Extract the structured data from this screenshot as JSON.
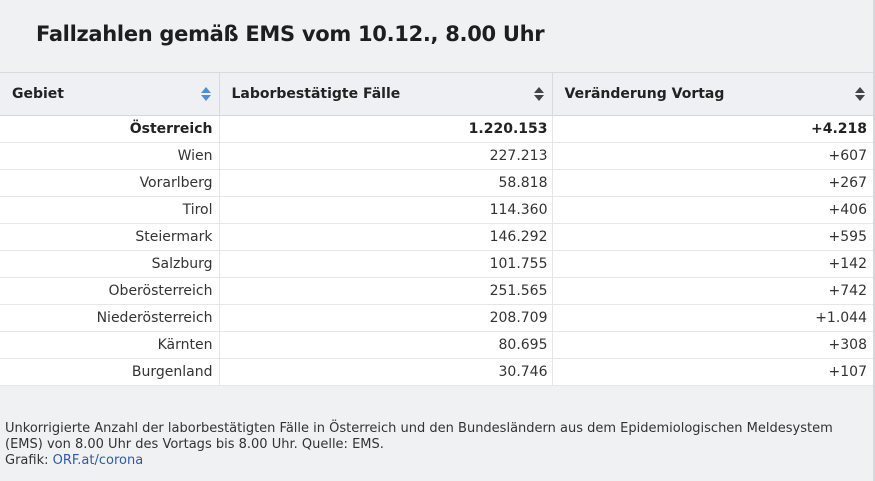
{
  "title": "Fallzahlen gemäß EMS vom 10.12., 8.00 Uhr",
  "columns": [
    {
      "label": "Gebiet",
      "sort_color": "#4a90d9"
    },
    {
      "label": "Laborbestätigte Fälle",
      "sort_color": "#444444"
    },
    {
      "label": "Veränderung Vortag",
      "sort_color": "#444444"
    }
  ],
  "rows": [
    {
      "gebiet": "Österreich",
      "faelle": "1.220.153",
      "veraenderung": "+4.218"
    },
    {
      "gebiet": "Wien",
      "faelle": "227.213",
      "veraenderung": "+607"
    },
    {
      "gebiet": "Vorarlberg",
      "faelle": "58.818",
      "veraenderung": "+267"
    },
    {
      "gebiet": "Tirol",
      "faelle": "114.360",
      "veraenderung": "+406"
    },
    {
      "gebiet": "Steiermark",
      "faelle": "146.292",
      "veraenderung": "+595"
    },
    {
      "gebiet": "Salzburg",
      "faelle": "101.755",
      "veraenderung": "+142"
    },
    {
      "gebiet": "Oberösterreich",
      "faelle": "251.565",
      "veraenderung": "+742"
    },
    {
      "gebiet": "Niederösterreich",
      "faelle": "208.709",
      "veraenderung": "+1.044"
    },
    {
      "gebiet": "Kärnten",
      "faelle": "80.695",
      "veraenderung": "+308"
    },
    {
      "gebiet": "Burgenland",
      "faelle": "30.746",
      "veraenderung": "+107"
    }
  ],
  "footnote": {
    "text": "Unkorrigierte Anzahl der laborbestätigten Fälle in Österreich und den Bundesländern aus dem Epidemiologischen Meldesystem (EMS) von 8.00 Uhr des Vortags bis 8.00 Uhr. Quelle: EMS.",
    "credit_label": "Grafik:",
    "credit_link": "ORF.at/corona"
  }
}
